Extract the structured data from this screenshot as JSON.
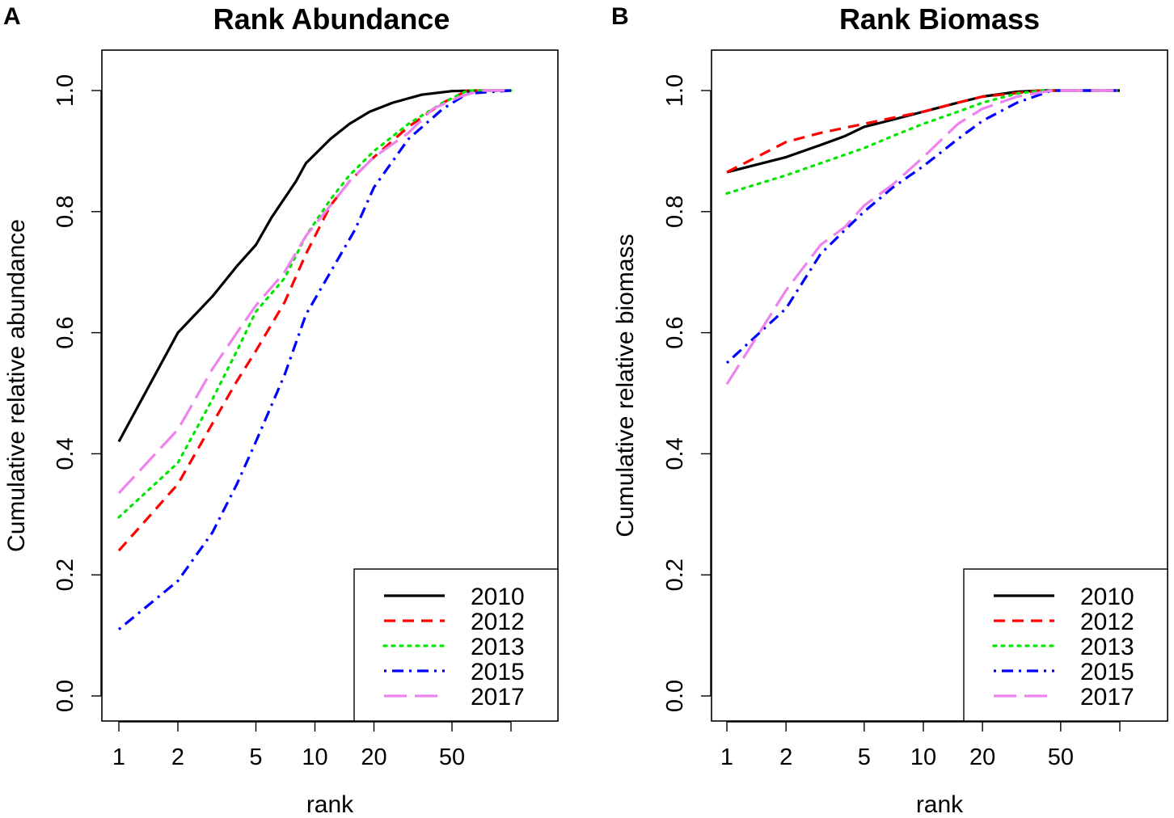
{
  "colors": {
    "2010": "#000000",
    "2012": "#ff0000",
    "2013": "#00e600",
    "2015": "#0000ff",
    "2017": "#ee82ee"
  },
  "line_styles": {
    "2010": "solid",
    "2012": "dashed",
    "2013": "dotted",
    "2015": "dot-dash",
    "2017": "long-dash"
  },
  "chart_data": [
    {
      "panel": "A",
      "type": "line",
      "title": "Rank Abundance",
      "xlabel": "rank",
      "ylabel": "Cumulative relative abundance",
      "x_scale": "log",
      "xlim": [
        1,
        100
      ],
      "ylim": [
        0,
        1
      ],
      "x_ticks": [
        1,
        2,
        5,
        10,
        20,
        50,
        100
      ],
      "x_tick_labels": [
        "1",
        "2",
        "5",
        "10",
        "20",
        "50",
        ""
      ],
      "y_ticks": [
        0,
        0.2,
        0.4,
        0.6,
        0.8,
        1.0
      ],
      "y_tick_labels": [
        "0.0",
        "0.2",
        "0.4",
        "0.6",
        "0.8",
        "1.0"
      ],
      "legend_position": "bottom-right",
      "series": [
        {
          "name": "2010",
          "points": [
            [
              1,
              0.42
            ],
            [
              2,
              0.6
            ],
            [
              3,
              0.66
            ],
            [
              4,
              0.71
            ],
            [
              5,
              0.745
            ],
            [
              6,
              0.79
            ],
            [
              8,
              0.85
            ],
            [
              9,
              0.88
            ],
            [
              12,
              0.92
            ],
            [
              15,
              0.945
            ],
            [
              19,
              0.965
            ],
            [
              25,
              0.98
            ],
            [
              35,
              0.993
            ],
            [
              50,
              0.999
            ],
            [
              70,
              1.0
            ],
            [
              100,
              1.0
            ]
          ]
        },
        {
          "name": "2012",
          "points": [
            [
              1,
              0.24
            ],
            [
              2,
              0.35
            ],
            [
              3,
              0.45
            ],
            [
              4,
              0.52
            ],
            [
              5,
              0.57
            ],
            [
              7,
              0.65
            ],
            [
              9,
              0.73
            ],
            [
              12,
              0.81
            ],
            [
              15,
              0.85
            ],
            [
              20,
              0.89
            ],
            [
              30,
              0.94
            ],
            [
              45,
              0.98
            ],
            [
              60,
              1.0
            ],
            [
              100,
              1.0
            ]
          ]
        },
        {
          "name": "2013",
          "points": [
            [
              1,
              0.295
            ],
            [
              2,
              0.385
            ],
            [
              3,
              0.49
            ],
            [
              4,
              0.57
            ],
            [
              5,
              0.635
            ],
            [
              7,
              0.69
            ],
            [
              9,
              0.76
            ],
            [
              12,
              0.82
            ],
            [
              15,
              0.86
            ],
            [
              20,
              0.9
            ],
            [
              30,
              0.945
            ],
            [
              45,
              0.98
            ],
            [
              60,
              1.0
            ],
            [
              100,
              1.0
            ]
          ]
        },
        {
          "name": "2015",
          "points": [
            [
              1,
              0.11
            ],
            [
              2,
              0.19
            ],
            [
              3,
              0.27
            ],
            [
              4,
              0.35
            ],
            [
              5,
              0.42
            ],
            [
              7,
              0.53
            ],
            [
              9,
              0.63
            ],
            [
              12,
              0.7
            ],
            [
              16,
              0.77
            ],
            [
              20,
              0.84
            ],
            [
              30,
              0.92
            ],
            [
              45,
              0.97
            ],
            [
              60,
              0.995
            ],
            [
              100,
              1.0
            ]
          ]
        },
        {
          "name": "2017",
          "points": [
            [
              1,
              0.335
            ],
            [
              2,
              0.44
            ],
            [
              3,
              0.54
            ],
            [
              4,
              0.6
            ],
            [
              5,
              0.645
            ],
            [
              7,
              0.7
            ],
            [
              9,
              0.76
            ],
            [
              12,
              0.81
            ],
            [
              15,
              0.85
            ],
            [
              20,
              0.89
            ],
            [
              30,
              0.93
            ],
            [
              40,
              0.97
            ],
            [
              55,
              0.99
            ],
            [
              70,
              1.0
            ],
            [
              100,
              1.0
            ]
          ]
        }
      ]
    },
    {
      "panel": "B",
      "type": "line",
      "title": "Rank Biomass",
      "xlabel": "rank",
      "ylabel": "Cumulative relative biomass",
      "x_scale": "log",
      "xlim": [
        1,
        100
      ],
      "ylim": [
        0,
        1
      ],
      "x_ticks": [
        1,
        2,
        5,
        10,
        20,
        50,
        100
      ],
      "x_tick_labels": [
        "1",
        "2",
        "5",
        "10",
        "20",
        "50",
        ""
      ],
      "y_ticks": [
        0,
        0.2,
        0.4,
        0.6,
        0.8,
        1.0
      ],
      "y_tick_labels": [
        "0.0",
        "0.2",
        "0.4",
        "0.6",
        "0.8",
        "1.0"
      ],
      "legend_position": "bottom-right",
      "series": [
        {
          "name": "2010",
          "points": [
            [
              1,
              0.865
            ],
            [
              2,
              0.89
            ],
            [
              3,
              0.91
            ],
            [
              4,
              0.925
            ],
            [
              5,
              0.94
            ],
            [
              7,
              0.952
            ],
            [
              10,
              0.965
            ],
            [
              15,
              0.98
            ],
            [
              20,
              0.99
            ],
            [
              30,
              0.998
            ],
            [
              40,
              1.0
            ],
            [
              100,
              1.0
            ]
          ]
        },
        {
          "name": "2012",
          "points": [
            [
              1,
              0.865
            ],
            [
              2,
              0.915
            ],
            [
              3,
              0.93
            ],
            [
              5,
              0.945
            ],
            [
              7,
              0.955
            ],
            [
              10,
              0.965
            ],
            [
              15,
              0.98
            ],
            [
              20,
              0.99
            ],
            [
              30,
              0.996
            ],
            [
              40,
              1.0
            ],
            [
              100,
              1.0
            ]
          ]
        },
        {
          "name": "2013",
          "points": [
            [
              1,
              0.83
            ],
            [
              2,
              0.86
            ],
            [
              3,
              0.88
            ],
            [
              5,
              0.905
            ],
            [
              7,
              0.925
            ],
            [
              10,
              0.945
            ],
            [
              15,
              0.965
            ],
            [
              20,
              0.98
            ],
            [
              30,
              0.995
            ],
            [
              40,
              1.0
            ],
            [
              100,
              1.0
            ]
          ]
        },
        {
          "name": "2015",
          "points": [
            [
              1,
              0.55
            ],
            [
              2,
              0.64
            ],
            [
              3,
              0.73
            ],
            [
              4,
              0.77
            ],
            [
              5,
              0.8
            ],
            [
              7,
              0.84
            ],
            [
              10,
              0.875
            ],
            [
              15,
              0.92
            ],
            [
              20,
              0.95
            ],
            [
              30,
              0.98
            ],
            [
              45,
              1.0
            ],
            [
              100,
              1.0
            ]
          ]
        },
        {
          "name": "2017",
          "points": [
            [
              1,
              0.515
            ],
            [
              2,
              0.67
            ],
            [
              3,
              0.745
            ],
            [
              4,
              0.775
            ],
            [
              5,
              0.81
            ],
            [
              7,
              0.845
            ],
            [
              10,
              0.89
            ],
            [
              15,
              0.945
            ],
            [
              20,
              0.97
            ],
            [
              30,
              0.99
            ],
            [
              45,
              1.0
            ],
            [
              100,
              1.0
            ]
          ]
        }
      ]
    }
  ]
}
